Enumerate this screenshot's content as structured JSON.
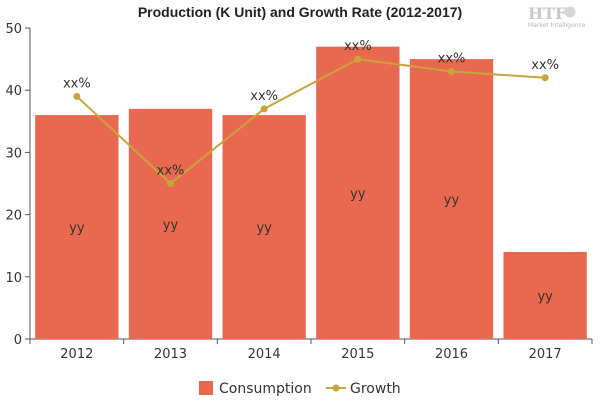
{
  "chart_data": {
    "type": "bar",
    "title": "Production (K Unit) and Growth Rate (2012-2017)",
    "categories": [
      "2012",
      "2013",
      "2014",
      "2015",
      "2016",
      "2017"
    ],
    "series": [
      {
        "name": "Consumption",
        "type": "bar",
        "values": [
          36,
          37,
          36,
          47,
          45,
          14
        ],
        "labels": [
          "yy",
          "yy",
          "yy",
          "yy",
          "yy",
          "yy"
        ]
      },
      {
        "name": "Growth",
        "type": "line",
        "values": [
          39,
          25,
          37,
          45,
          43,
          42
        ],
        "labels": [
          "xx%",
          "xx%",
          "xx%",
          "xx%",
          "xx%",
          "xx%"
        ]
      }
    ],
    "ylim": [
      0,
      50
    ],
    "yticks": [
      "0",
      "10",
      "20",
      "30",
      "40",
      "50"
    ],
    "grid": false,
    "legend": "bottom",
    "colors": {
      "bar": "#e8694f",
      "line": "#c9a43c"
    }
  },
  "logo": {
    "text": "HTF",
    "subtext": "Market Intelligence"
  }
}
